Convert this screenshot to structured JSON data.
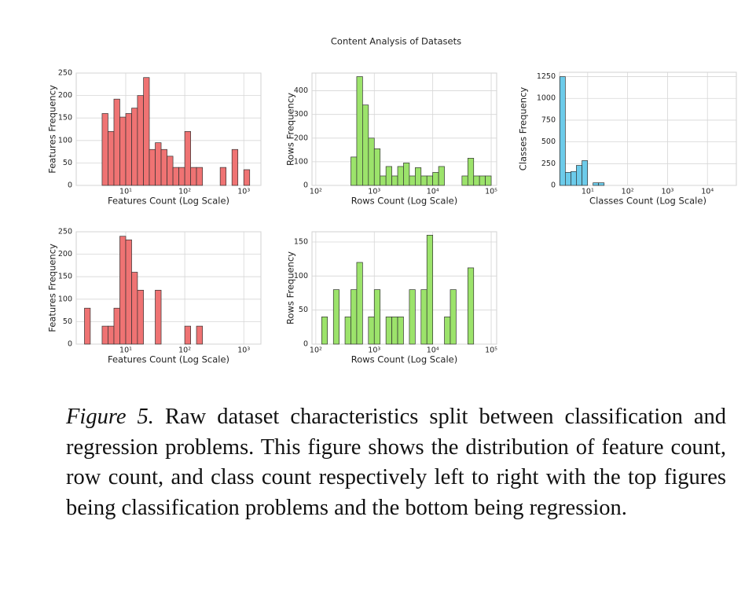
{
  "title": "Content Analysis of Datasets",
  "chart_data": [
    {
      "type": "histogram",
      "xlabel": "Features Count (Log Scale)",
      "ylabel": "Features Frequency",
      "color": "#ef7373",
      "log_x": true,
      "grid": true,
      "bins": [
        3.98,
        5.01,
        6.31,
        7.94,
        10,
        12.6,
        15.8,
        20,
        25.1,
        31.6,
        39.8,
        50.1,
        63.1,
        79.4,
        100,
        126,
        158,
        200,
        251,
        316,
        398,
        501,
        631,
        794,
        1000,
        1259
      ],
      "values": [
        160,
        120,
        192,
        152,
        160,
        172,
        200,
        240,
        80,
        95,
        80,
        65,
        40,
        40,
        120,
        40,
        40,
        0,
        0,
        0,
        40,
        0,
        80,
        0,
        35
      ],
      "xlim": [
        1.45,
        1950
      ],
      "xticks": [
        {
          "value": 10,
          "label": "10¹"
        },
        {
          "value": 100,
          "label": "10²"
        },
        {
          "value": 1000,
          "label": "10³"
        }
      ],
      "ylim": [
        0,
        250
      ],
      "yticks": [
        0,
        50,
        100,
        150,
        200,
        250
      ]
    },
    {
      "type": "histogram",
      "xlabel": "Rows Count (Log Scale)",
      "ylabel": "Rows Frequency",
      "color": "#9ce36b",
      "log_x": true,
      "grid": true,
      "bins": [
        398,
        501,
        631,
        794,
        1000,
        1259,
        1585,
        1995,
        2512,
        3162,
        3981,
        5012,
        6310,
        7943,
        10000,
        12589,
        15849,
        19953,
        25119,
        31623,
        39811,
        50119,
        63096,
        79433,
        100000
      ],
      "values": [
        120,
        460,
        340,
        200,
        155,
        40,
        80,
        40,
        80,
        95,
        40,
        75,
        40,
        40,
        55,
        80,
        0,
        0,
        0,
        40,
        115,
        40,
        40,
        40
      ],
      "xlim": [
        86,
        124000
      ],
      "xticks": [
        {
          "value": 100,
          "label": "10²"
        },
        {
          "value": 1000,
          "label": "10³"
        },
        {
          "value": 10000,
          "label": "10⁴"
        },
        {
          "value": 100000,
          "label": "10⁵"
        }
      ],
      "ylim": [
        0,
        475
      ],
      "yticks": [
        0,
        100,
        200,
        300,
        400
      ]
    },
    {
      "type": "histogram",
      "xlabel": "Classes Count (Log Scale)",
      "ylabel": "Classes Frequency",
      "color": "#6ccbea",
      "log_x": true,
      "grid": true,
      "bins": [
        2,
        2.75,
        3.8,
        5.2,
        7.2,
        9.9,
        13.6,
        18.7,
        25.8
      ],
      "values": [
        1250,
        150,
        160,
        230,
        285,
        0,
        30,
        30
      ],
      "xlim": [
        1.97,
        53000
      ],
      "xticks": [
        {
          "value": 10,
          "label": "10¹"
        },
        {
          "value": 100,
          "label": "10²"
        },
        {
          "value": 1000,
          "label": "10³"
        },
        {
          "value": 10000,
          "label": "10⁴"
        }
      ],
      "ylim": [
        0,
        1300
      ],
      "yticks": [
        0,
        250,
        500,
        750,
        1000,
        1250
      ]
    },
    {
      "type": "histogram",
      "xlabel": "Features Count (Log Scale)",
      "ylabel": "Features Frequency",
      "color": "#ef7373",
      "log_x": true,
      "grid": true,
      "bins": [
        2,
        2.51,
        3.16,
        3.98,
        5.01,
        6.31,
        7.94,
        10,
        12.6,
        15.8,
        20,
        25.1,
        31.6,
        39.8,
        50.1,
        63.1,
        79.4,
        100,
        126,
        158,
        200
      ],
      "values": [
        80,
        0,
        0,
        40,
        40,
        80,
        240,
        232,
        160,
        120,
        0,
        0,
        120,
        0,
        0,
        0,
        0,
        40,
        0,
        40
      ],
      "xlim": [
        1.45,
        1950
      ],
      "xticks": [
        {
          "value": 10,
          "label": "10¹"
        },
        {
          "value": 100,
          "label": "10²"
        },
        {
          "value": 1000,
          "label": "10³"
        }
      ],
      "ylim": [
        0,
        250
      ],
      "yticks": [
        0,
        50,
        100,
        150,
        200,
        250
      ]
    },
    {
      "type": "histogram",
      "xlabel": "Rows Count (Log Scale)",
      "ylabel": "Rows Frequency",
      "color": "#9ce36b",
      "log_x": true,
      "grid": true,
      "bins": [
        126,
        158,
        200,
        251,
        316,
        398,
        501,
        631,
        794,
        1000,
        1259,
        1585,
        1995,
        2512,
        3162,
        3981,
        5012,
        6310,
        7943,
        10000,
        12589,
        15849,
        19953,
        25119,
        31623,
        39811,
        50119
      ],
      "values": [
        40,
        0,
        80,
        0,
        40,
        80,
        120,
        0,
        40,
        80,
        0,
        40,
        40,
        40,
        0,
        80,
        0,
        80,
        160,
        0,
        0,
        40,
        80,
        0,
        0,
        112
      ],
      "xlim": [
        86,
        124000
      ],
      "xticks": [
        {
          "value": 100,
          "label": "10²"
        },
        {
          "value": 1000,
          "label": "10³"
        },
        {
          "value": 10000,
          "label": "10⁴"
        },
        {
          "value": 100000,
          "label": "10⁵"
        }
      ],
      "ylim": [
        0,
        165
      ],
      "yticks": [
        0,
        50,
        100,
        150
      ]
    }
  ],
  "caption": {
    "label": "Figure 5.",
    "text": "Raw dataset characteristics split between classification and regression problems. This figure shows the distribution of feature count, row count, and class count respectively left to right with the top figures being classification problems and the bottom being regression."
  }
}
